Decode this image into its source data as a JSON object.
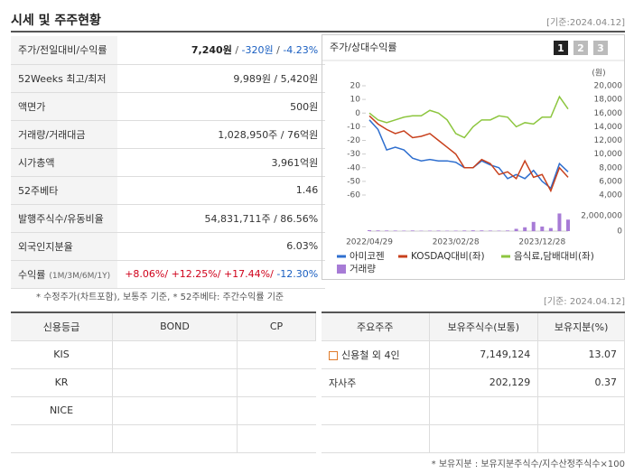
{
  "header": {
    "title": "시세 및 주주현황",
    "date": "[기준:2024.04.12]"
  },
  "price_table": {
    "rows": [
      {
        "label": "주가/전일대비/수익률",
        "parts": [
          {
            "text": "7,240원",
            "color": "#222",
            "bold": true
          },
          {
            "text": " / ",
            "color": "#555"
          },
          {
            "text": "-320원",
            "color": "#1a5fc1"
          },
          {
            "text": " / ",
            "color": "#555"
          },
          {
            "text": "-4.23%",
            "color": "#1a5fc1"
          }
        ]
      },
      {
        "label": "52Weeks 최고/최저",
        "parts": [
          {
            "text": "9,989원 / 5,420원",
            "color": "#333"
          }
        ]
      },
      {
        "label": "액면가",
        "parts": [
          {
            "text": "500원",
            "color": "#333"
          }
        ]
      },
      {
        "label": "거래량/거래대금",
        "parts": [
          {
            "text": "1,028,950주 / 76억원",
            "color": "#333"
          }
        ]
      },
      {
        "label": "시가총액",
        "parts": [
          {
            "text": "3,961억원",
            "color": "#333"
          }
        ]
      },
      {
        "label": "52주베타",
        "parts": [
          {
            "text": "1.46",
            "color": "#333"
          }
        ]
      },
      {
        "label": "발행주식수/유동비율",
        "parts": [
          {
            "text": "54,831,711주 / 86.56%",
            "color": "#333"
          }
        ]
      },
      {
        "label": "외국인지분율",
        "parts": [
          {
            "text": "6.03%",
            "color": "#333"
          }
        ]
      },
      {
        "label": "수익률",
        "sub": "(1M/3M/6M/1Y)",
        "parts": [
          {
            "text": "+8.06%/ ",
            "color": "#d0021b"
          },
          {
            "text": "+12.25%/ ",
            "color": "#d0021b"
          },
          {
            "text": "+17.44%/ ",
            "color": "#d0021b"
          },
          {
            "text": "-12.30%",
            "color": "#1a5fc1"
          }
        ]
      }
    ],
    "note": "* 수정주가(차트포함), 보통주 기준, * 52주베타: 주간수익률 기준"
  },
  "chart_data": {
    "type": "line",
    "title": "주가/상대수익률",
    "buttons": [
      "1",
      "2",
      "3"
    ],
    "y2_unit": "(원)",
    "categories": [
      "2022/04/29",
      null,
      null,
      null,
      null,
      null,
      null,
      null,
      null,
      null,
      "2023/02/28",
      null,
      null,
      null,
      null,
      null,
      null,
      null,
      null,
      null,
      "2023/12/28",
      null,
      null,
      null
    ],
    "ylim": [
      -60,
      20
    ],
    "yticks": [
      20,
      10,
      0,
      -10,
      -20,
      -30,
      -40,
      -50,
      -60
    ],
    "y2lim": [
      4000,
      20000
    ],
    "y2ticks": [
      {
        "value": 20000,
        "label": "20,000"
      },
      {
        "value": 18000,
        "label": "18,000"
      },
      {
        "value": 16000,
        "label": "16,000"
      },
      {
        "value": 14000,
        "label": "14,000"
      },
      {
        "value": 12000,
        "label": "12,000"
      },
      {
        "value": 10000,
        "label": "10,000"
      },
      {
        "value": 8000,
        "label": "8,000"
      },
      {
        "value": 6000,
        "label": "6,000"
      },
      {
        "value": 4000,
        "label": "4,000"
      }
    ],
    "volume_lim": [
      0,
      2000000
    ],
    "volume_ticks": [
      {
        "value": 2000000,
        "label": "2,000,000"
      },
      0
    ],
    "series": [
      {
        "name": "아미코젠",
        "color": "#2f6fcf",
        "values": [
          -5,
          -12,
          -27,
          -25,
          -27,
          -33,
          -35,
          -34,
          -35,
          -35,
          -36,
          -40,
          -40,
          -35,
          -38,
          -40,
          -48,
          -45,
          -48,
          -42,
          -50,
          -55,
          -37,
          -43
        ]
      },
      {
        "name": "KOSDAQ대비(좌)",
        "color": "#c8401c",
        "values": [
          -2,
          -8,
          -12,
          -15,
          -13,
          -18,
          -17,
          -15,
          -20,
          -25,
          -30,
          -40,
          -40,
          -34,
          -37,
          -45,
          -43,
          -48,
          -35,
          -47,
          -45,
          -57,
          -40,
          -47
        ]
      },
      {
        "name": "음식료,담배대비(좌)",
        "color": "#8dc63f",
        "values": [
          0,
          -5,
          -7,
          -5,
          -3,
          -2,
          -2,
          2,
          0,
          -5,
          -15,
          -18,
          -10,
          -5,
          -5,
          -2,
          -3,
          -10,
          -7,
          -8,
          -3,
          -3,
          12,
          3
        ]
      },
      {
        "name": "거래량",
        "color": "#a77bd6",
        "type": "bar",
        "axis": "volume",
        "values": [
          120000,
          90000,
          80000,
          70000,
          60000,
          80000,
          50000,
          60000,
          70000,
          50000,
          60000,
          80000,
          100000,
          90000,
          70000,
          60000,
          80000,
          300000,
          500000,
          1200000,
          600000,
          400000,
          2300000,
          1500000
        ]
      }
    ]
  },
  "rating_table": {
    "columns": [
      "신용등급",
      "BOND",
      "CP"
    ],
    "agencies": [
      "KIS",
      "KR",
      "NICE"
    ]
  },
  "holders": {
    "date": "[기준: 2024.04.12]",
    "columns": [
      "주요주주",
      "보유주식수(보통)",
      "보유지분(%)"
    ],
    "rows": [
      [
        "신용철 외 4인",
        "7,149,124",
        "13.07"
      ],
      [
        "자사주",
        "202,129",
        "0.37"
      ]
    ],
    "note": "* 보유지분 : 보유지분주식수/지수산정주식수×100"
  }
}
